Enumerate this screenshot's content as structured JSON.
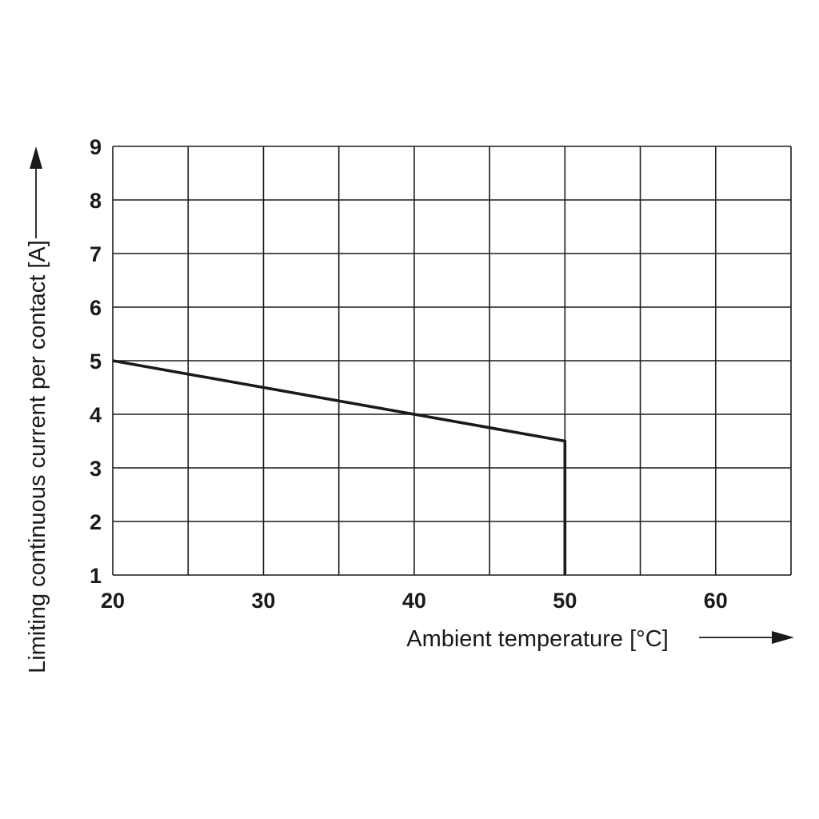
{
  "chart_data": {
    "type": "line",
    "title": "",
    "xlabel": "Ambient temperature [°C]",
    "ylabel": "Limiting continuous current per contact [A]",
    "xlim": [
      20,
      65
    ],
    "ylim": [
      1,
      9
    ],
    "x_ticks": [
      20,
      30,
      40,
      50,
      60
    ],
    "y_ticks": [
      1,
      2,
      3,
      4,
      5,
      6,
      7,
      8,
      9
    ],
    "x_grid_step": 5,
    "y_grid_step": 1,
    "grid": true,
    "legend": "none",
    "series": [
      {
        "points": [
          {
            "x": 20,
            "y": 5
          },
          {
            "x": 40,
            "y": 4
          },
          {
            "x": 50,
            "y": 3.5
          },
          {
            "x": 50,
            "y": 1
          }
        ]
      }
    ],
    "colors": {
      "line": "#1a1a1a",
      "grid": "#1a1a1a",
      "background": "#ffffff"
    }
  }
}
